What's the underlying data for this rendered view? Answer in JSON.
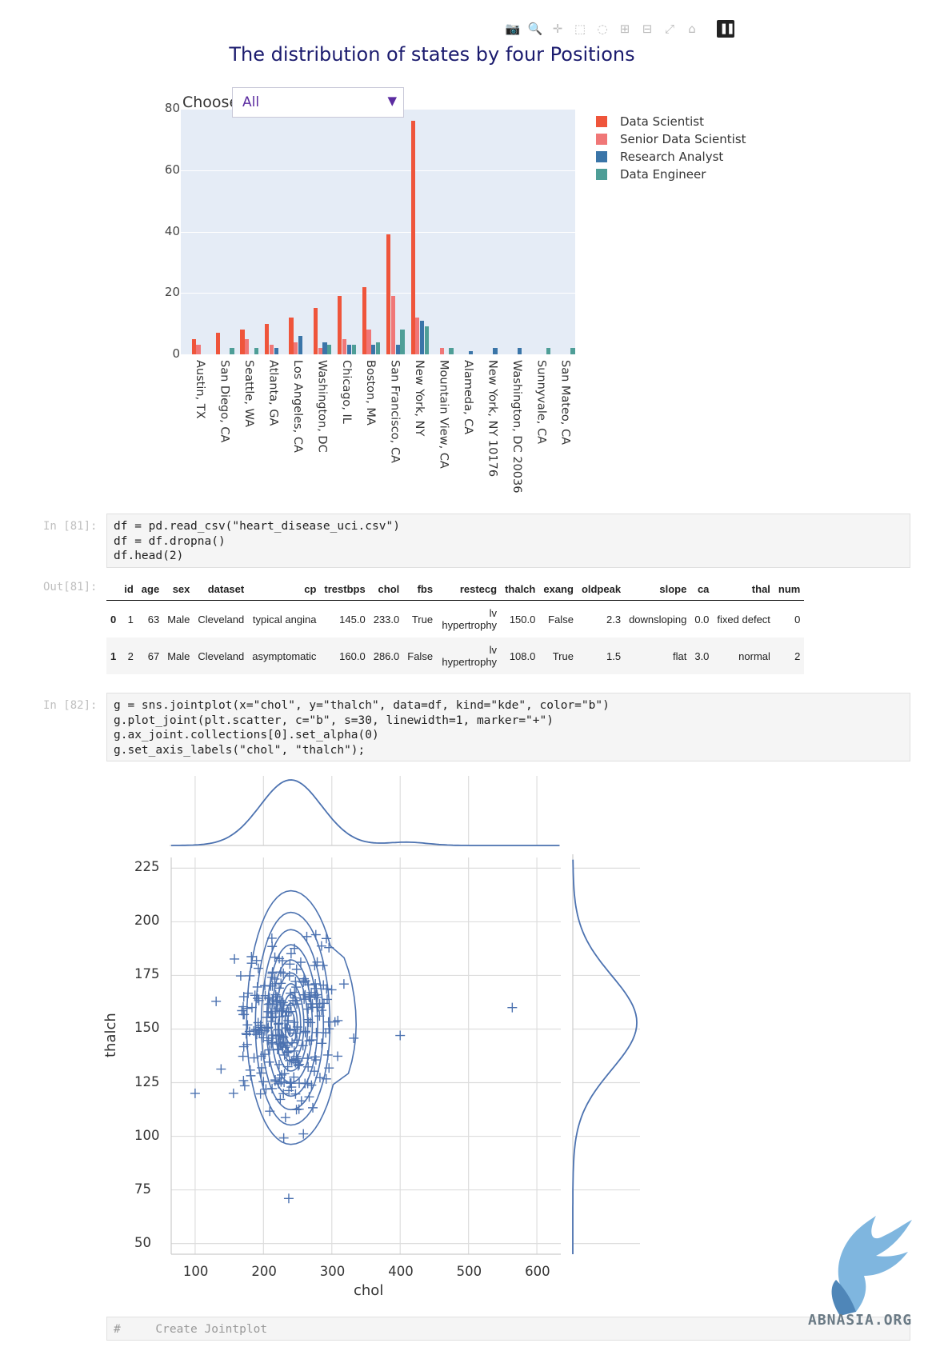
{
  "modebar": {
    "icons": [
      "camera-icon",
      "zoom-icon",
      "pan-icon",
      "box-select-icon",
      "lasso-icon",
      "zoom-in-icon",
      "zoom-out-icon",
      "autoscale-icon",
      "reset-axes-icon"
    ],
    "logo": "plotly-logo-icon"
  },
  "plotly": {
    "title": "The distribution of states by four Positions",
    "choose_label": "Choose",
    "dropdown_value": "All",
    "colors": {
      "Data Scientist": "#ef553b",
      "Senior Data Scientist": "#f07777",
      "Research Analyst": "#3a75a8",
      "Data Engineer": "#4e9e97",
      "plot_bg": "#e5ecf6"
    }
  },
  "chart_data": [
    {
      "type": "bar",
      "title": "The distribution of states by four Positions",
      "xlabel": "",
      "ylabel": "",
      "ylim": [
        0,
        80
      ],
      "yticks": [
        0,
        20,
        40,
        60,
        80
      ],
      "grid": true,
      "legend_placement": "right",
      "categories": [
        "Austin, TX",
        "San Diego, CA",
        "Seattle, WA",
        "Atlanta, GA",
        "Los Angeles, CA",
        "Washington, DC",
        "Chicago, IL",
        "Boston, MA",
        "San Francisco, CA",
        "New York, NY",
        "Mountain View, CA",
        "Alameda, CA",
        "New York, NY 10176",
        "Washington, DC 20036",
        "Sunnyvale, CA",
        "San Mateo, CA"
      ],
      "series": [
        {
          "name": "Data Scientist",
          "values": [
            5,
            7,
            8,
            10,
            12,
            15,
            19,
            22,
            39,
            76,
            0,
            0,
            0,
            0,
            0,
            0
          ]
        },
        {
          "name": "Senior Data Scientist",
          "values": [
            3,
            0,
            5,
            3,
            4,
            2,
            5,
            8,
            19,
            12,
            2,
            0,
            0,
            0,
            0,
            0
          ]
        },
        {
          "name": "Research Analyst",
          "values": [
            0,
            0,
            0,
            2,
            6,
            4,
            3,
            3,
            3,
            11,
            0,
            1,
            2,
            2,
            0,
            0
          ]
        },
        {
          "name": "Data Engineer",
          "values": [
            0,
            2,
            2,
            0,
            0,
            3,
            3,
            4,
            8,
            9,
            2,
            0,
            0,
            0,
            2,
            2
          ]
        }
      ]
    },
    {
      "type": "scatter",
      "xlabel": "chol",
      "ylabel": "thalch",
      "xlim": [
        65,
        635
      ],
      "ylim": [
        45,
        230
      ],
      "xticks": [
        100,
        200,
        300,
        400,
        500,
        600
      ],
      "yticks": [
        50,
        75,
        100,
        125,
        150,
        175,
        200,
        225
      ],
      "grid": true,
      "marker": "+",
      "color": "#4c72b0",
      "outliers": [
        {
          "x": 100,
          "y": 120
        },
        {
          "x": 237,
          "y": 71
        },
        {
          "x": 564,
          "y": 160
        },
        {
          "x": 400,
          "y": 147
        }
      ]
    }
  ],
  "cells": {
    "in81_prompt": "In [81]:",
    "in81_code": [
      "df = pd.read_csv(\"heart_disease_uci.csv\")",
      "df = df.dropna()",
      "df.head(2)"
    ],
    "out81_prompt": "Out[81]:",
    "in82_prompt": "In [82]:",
    "in82_code": [
      "g = sns.jointplot(x=\"chol\", y=\"thalch\", data=df, kind=\"kde\", color=\"b\")",
      "g.plot_joint(plt.scatter, c=\"b\", s=30, linewidth=1, marker=\"+\")",
      "g.ax_joint.collections[0].set_alpha(0)",
      "g.set_axis_labels(\"chol\", \"thalch\");"
    ],
    "next_code_partial": "#     Create Jointplot"
  },
  "dataframe": {
    "columns": [
      "",
      "id",
      "age",
      "sex",
      "dataset",
      "cp",
      "trestbps",
      "chol",
      "fbs",
      "restecg",
      "thalch",
      "exang",
      "oldpeak",
      "slope",
      "ca",
      "thal",
      "num"
    ],
    "rows": [
      [
        "0",
        "1",
        "63",
        "Male",
        "Cleveland",
        "typical angina",
        "145.0",
        "233.0",
        "True",
        "lv hypertrophy",
        "150.0",
        "False",
        "2.3",
        "downsloping",
        "0.0",
        "fixed defect",
        "0"
      ],
      [
        "1",
        "2",
        "67",
        "Male",
        "Cleveland",
        "asymptomatic",
        "160.0",
        "286.0",
        "False",
        "lv hypertrophy",
        "108.0",
        "True",
        "1.5",
        "flat",
        "3.0",
        "normal",
        "2"
      ]
    ]
  },
  "watermark": "ABNASIA.ORG"
}
